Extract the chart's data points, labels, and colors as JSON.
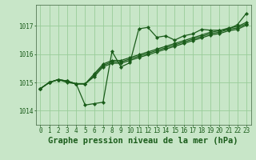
{
  "bg_color": "#c8e6c8",
  "grid_color": "#99cc99",
  "line_color": "#1a5c1a",
  "marker_color": "#1a5c1a",
  "title": "Graphe pression niveau de la mer (hPa)",
  "xlim": [
    -0.5,
    23.5
  ],
  "ylim": [
    1013.5,
    1017.75
  ],
  "yticks": [
    1014,
    1015,
    1016,
    1017
  ],
  "xticks": [
    0,
    1,
    2,
    3,
    4,
    5,
    6,
    7,
    8,
    9,
    10,
    11,
    12,
    13,
    14,
    15,
    16,
    17,
    18,
    19,
    20,
    21,
    22,
    23
  ],
  "series1_x": [
    0,
    1,
    2,
    3,
    4,
    5,
    6,
    7,
    8,
    9,
    10,
    11,
    12,
    13,
    14,
    15,
    16,
    17,
    18,
    19,
    20,
    21,
    22,
    23
  ],
  "series1_y": [
    1014.78,
    1015.0,
    1015.1,
    1015.0,
    1014.95,
    1014.2,
    1014.25,
    1014.3,
    1016.1,
    1015.55,
    1015.7,
    1016.9,
    1016.95,
    1016.6,
    1016.65,
    1016.5,
    1016.65,
    1016.72,
    1016.88,
    1016.85,
    1016.85,
    1016.88,
    1017.05,
    1017.45
  ],
  "series2_x": [
    0,
    1,
    2,
    3,
    4,
    5,
    6,
    7,
    8,
    9,
    10,
    11,
    12,
    13,
    14,
    15,
    16,
    17,
    18,
    19,
    20,
    21,
    22,
    23
  ],
  "series2_y": [
    1014.78,
    1015.0,
    1015.1,
    1015.05,
    1014.95,
    1014.95,
    1015.2,
    1015.55,
    1015.68,
    1015.68,
    1015.78,
    1015.88,
    1015.98,
    1016.08,
    1016.18,
    1016.28,
    1016.38,
    1016.48,
    1016.58,
    1016.68,
    1016.73,
    1016.83,
    1016.88,
    1017.03
  ],
  "series3_x": [
    0,
    1,
    2,
    3,
    4,
    5,
    6,
    7,
    8,
    9,
    10,
    11,
    12,
    13,
    14,
    15,
    16,
    17,
    18,
    19,
    20,
    21,
    22,
    23
  ],
  "series3_y": [
    1014.78,
    1015.0,
    1015.1,
    1015.05,
    1014.95,
    1014.95,
    1015.25,
    1015.6,
    1015.73,
    1015.73,
    1015.83,
    1015.93,
    1016.03,
    1016.13,
    1016.23,
    1016.33,
    1016.43,
    1016.53,
    1016.63,
    1016.73,
    1016.78,
    1016.88,
    1016.93,
    1017.08
  ],
  "series4_x": [
    0,
    1,
    2,
    3,
    4,
    5,
    6,
    7,
    8,
    9,
    10,
    11,
    12,
    13,
    14,
    15,
    16,
    17,
    18,
    19,
    20,
    21,
    22,
    23
  ],
  "series4_y": [
    1014.78,
    1015.0,
    1015.1,
    1015.05,
    1014.95,
    1014.95,
    1015.3,
    1015.65,
    1015.78,
    1015.78,
    1015.88,
    1015.98,
    1016.08,
    1016.18,
    1016.28,
    1016.38,
    1016.48,
    1016.58,
    1016.68,
    1016.78,
    1016.83,
    1016.93,
    1016.98,
    1017.13
  ],
  "tick_fontsize": 5.5,
  "title_fontsize": 7.5
}
